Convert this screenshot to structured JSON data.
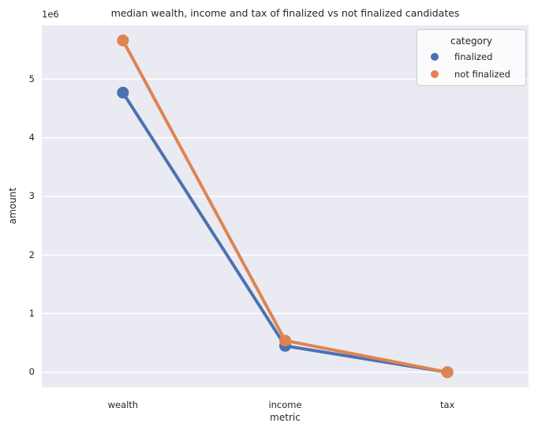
{
  "chart_data": {
    "type": "line",
    "title": "median wealth, income and tax of finalized vs not finalized candidates",
    "xlabel": "metric",
    "ylabel": "amount",
    "y_offset_label": "1e6",
    "categories": [
      "wealth",
      "income",
      "tax"
    ],
    "series": [
      {
        "name": "finalized",
        "color": "#4C72B0",
        "values": [
          4770000,
          450000,
          0
        ]
      },
      {
        "name": "not finalized",
        "color": "#DD8452",
        "values": [
          5660000,
          540000,
          0
        ]
      }
    ],
    "ylim": [
      -260000,
      5920000
    ],
    "yticks": [
      0,
      1000000,
      2000000,
      3000000,
      4000000,
      5000000
    ],
    "ytick_labels": [
      "0",
      "1",
      "2",
      "3",
      "4",
      "5"
    ],
    "grid": true,
    "legend_title": "category",
    "legend_position": "upper right",
    "plot_bg_color": "#EAEAF2",
    "grid_color": "#FFFFFF"
  }
}
